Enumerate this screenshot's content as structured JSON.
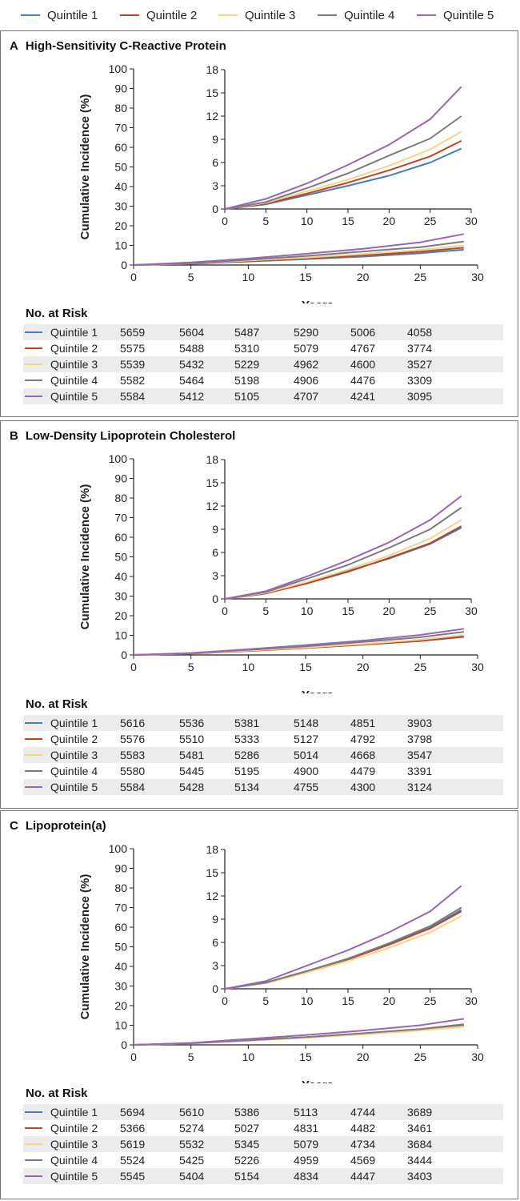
{
  "legend": [
    {
      "label": "Quintile 1",
      "color": "#4a7eb3"
    },
    {
      "label": "Quintile 2",
      "color": "#b5472b"
    },
    {
      "label": "Quintile 3",
      "color": "#f9d28c"
    },
    {
      "label": "Quintile 4",
      "color": "#7b7b7b"
    },
    {
      "label": "Quintile 5",
      "color": "#9866b3"
    }
  ],
  "risk_heading": "No. at Risk",
  "chart_data": [
    {
      "type": "line",
      "letter": "A",
      "title": "High-Sensitivity C-Reactive Protein",
      "xlabel": "Years",
      "ylabel": "Cumulative Incidence (%)",
      "xlim": [
        0,
        30
      ],
      "ylim": [
        0,
        100
      ],
      "inset_ylim": [
        0,
        18
      ],
      "x_ticks": [
        0,
        5,
        10,
        15,
        20,
        25,
        30
      ],
      "y_ticks": [
        0,
        10,
        20,
        30,
        40,
        50,
        60,
        70,
        80,
        90,
        100
      ],
      "inset_y_ticks": [
        0,
        3,
        6,
        9,
        12,
        15,
        18
      ],
      "x": [
        0,
        5,
        10,
        15,
        20,
        25,
        28.8
      ],
      "series": [
        {
          "name": "Quintile 1",
          "values": [
            0,
            0.6,
            1.8,
            3.0,
            4.3,
            6.0,
            7.8
          ]
        },
        {
          "name": "Quintile 2",
          "values": [
            0,
            0.7,
            2.0,
            3.4,
            5.0,
            6.8,
            8.8
          ]
        },
        {
          "name": "Quintile 3",
          "values": [
            0,
            0.8,
            2.3,
            3.8,
            5.6,
            7.7,
            10.0
          ]
        },
        {
          "name": "Quintile 4",
          "values": [
            0,
            0.9,
            2.7,
            4.6,
            6.9,
            9.1,
            12.0
          ]
        },
        {
          "name": "Quintile 5",
          "values": [
            0,
            1.3,
            3.3,
            5.7,
            8.3,
            11.6,
            15.8
          ]
        }
      ],
      "risk": [
        {
          "label": "Quintile 1",
          "values": [
            5659,
            5604,
            5487,
            5290,
            5006,
            4058
          ]
        },
        {
          "label": "Quintile 2",
          "values": [
            5575,
            5488,
            5310,
            5079,
            4767,
            3774
          ]
        },
        {
          "label": "Quintile 3",
          "values": [
            5539,
            5432,
            5229,
            4962,
            4600,
            3527
          ]
        },
        {
          "label": "Quintile 4",
          "values": [
            5582,
            5464,
            5198,
            4906,
            4476,
            3309
          ]
        },
        {
          "label": "Quintile 5",
          "values": [
            5584,
            5412,
            5105,
            4707,
            4241,
            3095
          ]
        }
      ]
    },
    {
      "type": "line",
      "letter": "B",
      "title": "Low-Density Lipoprotein Cholesterol",
      "xlabel": "Years",
      "ylabel": "Cumulative Incidence (%)",
      "xlim": [
        0,
        30
      ],
      "ylim": [
        0,
        100
      ],
      "inset_ylim": [
        0,
        18
      ],
      "x_ticks": [
        0,
        5,
        10,
        15,
        20,
        25,
        30
      ],
      "y_ticks": [
        0,
        10,
        20,
        30,
        40,
        50,
        60,
        70,
        80,
        90,
        100
      ],
      "inset_y_ticks": [
        0,
        3,
        6,
        9,
        12,
        15,
        18
      ],
      "x": [
        0,
        5,
        10,
        15,
        20,
        25,
        28.8
      ],
      "series": [
        {
          "name": "Quintile 1",
          "values": [
            0,
            0.7,
            2.1,
            3.6,
            5.2,
            7.1,
            9.2
          ]
        },
        {
          "name": "Quintile 2",
          "values": [
            0,
            0.7,
            2.0,
            3.5,
            5.3,
            7.2,
            9.4
          ]
        },
        {
          "name": "Quintile 3",
          "values": [
            0,
            0.8,
            2.2,
            3.8,
            5.6,
            7.8,
            10.2
          ]
        },
        {
          "name": "Quintile 4",
          "values": [
            0,
            0.9,
            2.6,
            4.4,
            6.6,
            9.0,
            11.8
          ]
        },
        {
          "name": "Quintile 5",
          "values": [
            0,
            1.0,
            2.9,
            5.0,
            7.3,
            10.2,
            13.3
          ]
        }
      ],
      "risk": [
        {
          "label": "Quintile 1",
          "values": [
            5616,
            5536,
            5381,
            5148,
            4851,
            3903
          ]
        },
        {
          "label": "Quintile 2",
          "values": [
            5576,
            5510,
            5333,
            5127,
            4792,
            3798
          ]
        },
        {
          "label": "Quintile 3",
          "values": [
            5583,
            5481,
            5286,
            5014,
            4668,
            3547
          ]
        },
        {
          "label": "Quintile 4",
          "values": [
            5580,
            5445,
            5195,
            4900,
            4479,
            3391
          ]
        },
        {
          "label": "Quintile 5",
          "values": [
            5584,
            5428,
            5134,
            4755,
            4300,
            3124
          ]
        }
      ]
    },
    {
      "type": "line",
      "letter": "C",
      "title": "Lipoprotein(a)",
      "xlabel": "Years",
      "ylabel": "Cumulative Incidence (%)",
      "xlim": [
        0,
        30
      ],
      "ylim": [
        0,
        100
      ],
      "inset_ylim": [
        0,
        18
      ],
      "x_ticks": [
        0,
        5,
        10,
        15,
        20,
        25,
        30
      ],
      "y_ticks": [
        0,
        10,
        20,
        30,
        40,
        50,
        60,
        70,
        80,
        90,
        100
      ],
      "inset_y_ticks": [
        0,
        3,
        6,
        9,
        12,
        15,
        18
      ],
      "x": [
        0,
        5,
        10,
        15,
        20,
        25,
        28.8
      ],
      "series": [
        {
          "name": "Quintile 1",
          "values": [
            0,
            0.8,
            2.3,
            3.9,
            5.8,
            7.9,
            10.2
          ]
        },
        {
          "name": "Quintile 2",
          "values": [
            0,
            0.8,
            2.3,
            3.8,
            5.7,
            7.8,
            10.0
          ]
        },
        {
          "name": "Quintile 3",
          "values": [
            0,
            0.7,
            2.1,
            3.6,
            5.3,
            7.3,
            9.4
          ]
        },
        {
          "name": "Quintile 4",
          "values": [
            0,
            0.8,
            2.3,
            3.9,
            5.9,
            8.1,
            10.5
          ]
        },
        {
          "name": "Quintile 5",
          "values": [
            0,
            1.0,
            3.0,
            5.0,
            7.3,
            10.0,
            13.3
          ]
        }
      ],
      "risk": [
        {
          "label": "Quintile 1",
          "values": [
            5694,
            5610,
            5386,
            5113,
            4744,
            3689
          ]
        },
        {
          "label": "Quintile 2",
          "values": [
            5366,
            5274,
            5027,
            4831,
            4482,
            3461
          ]
        },
        {
          "label": "Quintile 3",
          "values": [
            5619,
            5532,
            5345,
            5079,
            4734,
            3684
          ]
        },
        {
          "label": "Quintile 4",
          "values": [
            5524,
            5425,
            5226,
            4959,
            4569,
            3444
          ]
        },
        {
          "label": "Quintile 5",
          "values": [
            5545,
            5404,
            5154,
            4834,
            4447,
            3403
          ]
        }
      ]
    }
  ]
}
